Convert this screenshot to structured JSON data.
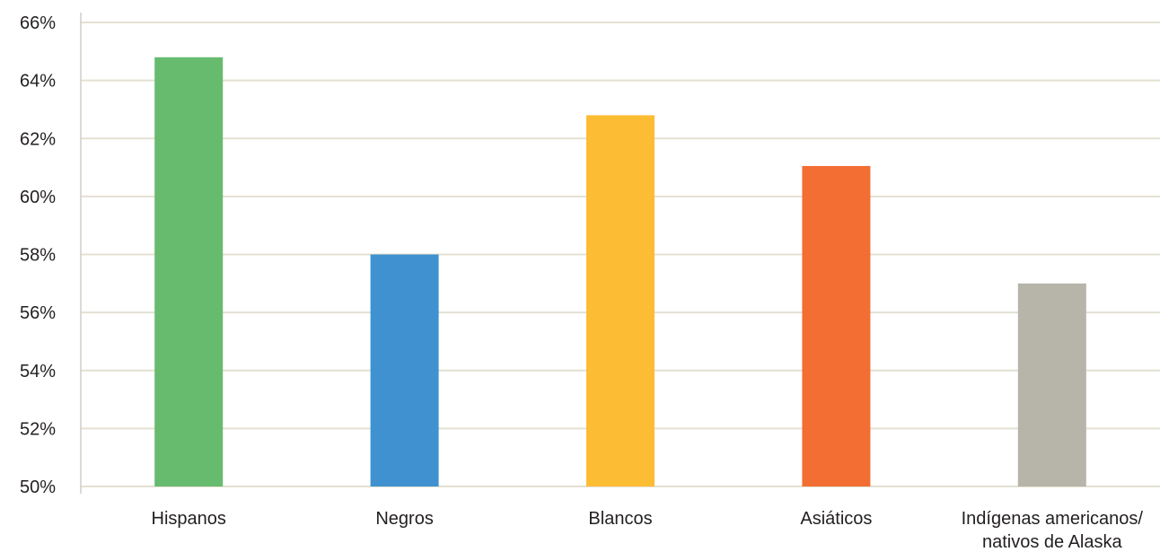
{
  "chart_data": {
    "type": "bar",
    "categories": [
      "Hispanos",
      "Negros",
      "Blancos",
      "Asiáticos",
      "Indígenas americanos/\nnativos de Alaska"
    ],
    "values": [
      64.8,
      58.0,
      62.8,
      61.05,
      57.0
    ],
    "colors": [
      "#67bb6e",
      "#3f92cf",
      "#fcbc34",
      "#f26e33",
      "#b7b4aa"
    ],
    "ylim": [
      50,
      66
    ],
    "yticks": [
      50,
      52,
      54,
      56,
      58,
      60,
      62,
      64,
      66
    ],
    "ytick_labels": [
      "50%",
      "52%",
      "54%",
      "56%",
      "58%",
      "60%",
      "62%",
      "64%",
      "66%"
    ],
    "title": "",
    "xlabel": "",
    "ylabel": "",
    "grid": true
  }
}
